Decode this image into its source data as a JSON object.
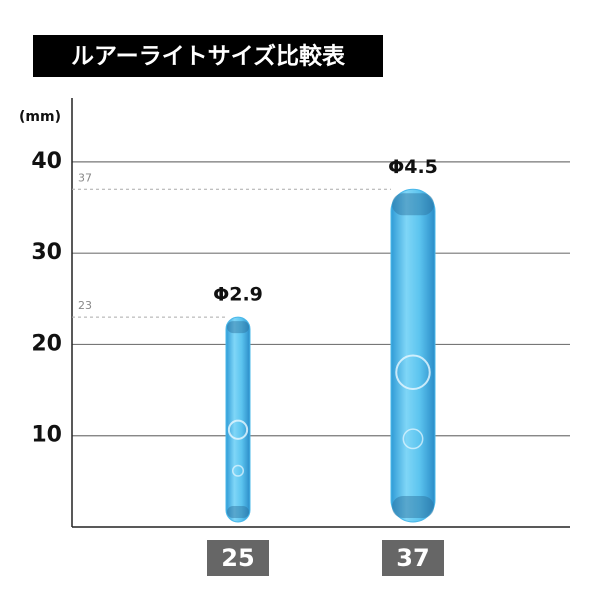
{
  "chart_data": {
    "type": "bar",
    "title": "ルアーライトサイズ比較表",
    "y_unit": "(mm)",
    "categories": [
      "25",
      "37"
    ],
    "values": [
      23,
      37
    ],
    "diameters": [
      "Φ2.9",
      "Φ4.5"
    ],
    "color": "#4ab8ea",
    "ylim": [
      0,
      47
    ],
    "yticks": [
      10,
      20,
      30,
      40
    ],
    "grid": true
  }
}
